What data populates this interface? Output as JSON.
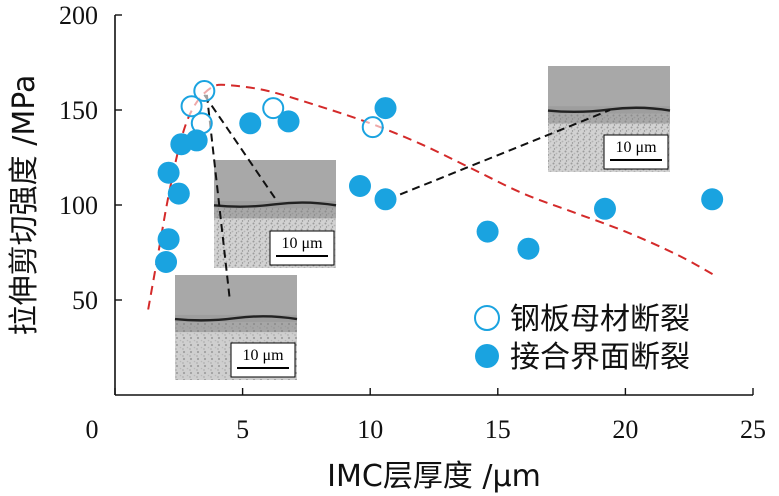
{
  "chart_data": {
    "type": "scatter",
    "xlabel": "IMC层厚度 /μm",
    "ylabel": "拉伸剪切强度 /MPa",
    "xlim": [
      0,
      25
    ],
    "ylim": [
      0,
      200
    ],
    "xticks": [
      "0",
      "5",
      "10",
      "15",
      "20",
      "25"
    ],
    "yticks": [
      "50",
      "100",
      "150",
      "200"
    ],
    "series": [
      {
        "name": "钢板母材断裂",
        "marker": "open-circle",
        "color": "#1aa3e0",
        "points": [
          [
            3.0,
            152
          ],
          [
            3.5,
            160
          ],
          [
            3.4,
            143
          ],
          [
            6.2,
            151
          ],
          [
            10.1,
            141
          ]
        ]
      },
      {
        "name": "接合界面断裂",
        "marker": "filled-circle",
        "color": "#1aa3e0",
        "points": [
          [
            2.0,
            70
          ],
          [
            2.1,
            82
          ],
          [
            2.1,
            117
          ],
          [
            2.5,
            106
          ],
          [
            2.6,
            132
          ],
          [
            3.2,
            134
          ],
          [
            5.3,
            143
          ],
          [
            6.8,
            144
          ],
          [
            9.6,
            110
          ],
          [
            10.6,
            103
          ],
          [
            10.6,
            151
          ],
          [
            14.6,
            86
          ],
          [
            16.2,
            77
          ],
          [
            19.2,
            98
          ],
          [
            23.4,
            103
          ]
        ]
      }
    ],
    "fit_curve": {
      "style": "dashed",
      "color": "#d42a2a",
      "points": [
        [
          1.3,
          45
        ],
        [
          1.7,
          75
        ],
        [
          2.1,
          105
        ],
        [
          2.6,
          135
        ],
        [
          3.1,
          152
        ],
        [
          3.8,
          162
        ],
        [
          4.5,
          163
        ],
        [
          6,
          160
        ],
        [
          8,
          152
        ],
        [
          10,
          143
        ],
        [
          12,
          132
        ],
        [
          14,
          119
        ],
        [
          16,
          106
        ],
        [
          18,
          96
        ],
        [
          20,
          86
        ],
        [
          22,
          74
        ],
        [
          23.5,
          63
        ]
      ]
    },
    "insets": [
      {
        "scale_label": "10 μm",
        "pointer_from": [
          3.5,
          158
        ],
        "pointer_to": [
          6.3,
          103
        ]
      },
      {
        "scale_label": "10 μm",
        "pointer_from": [
          3.6,
          158
        ],
        "pointer_to": [
          4.5,
          50
        ]
      },
      {
        "scale_label": "10 μm",
        "pointer_from": [
          10.7,
          103
        ],
        "pointer_to": [
          19.4,
          150
        ]
      }
    ],
    "legend": {
      "position": "bottom-right"
    }
  }
}
